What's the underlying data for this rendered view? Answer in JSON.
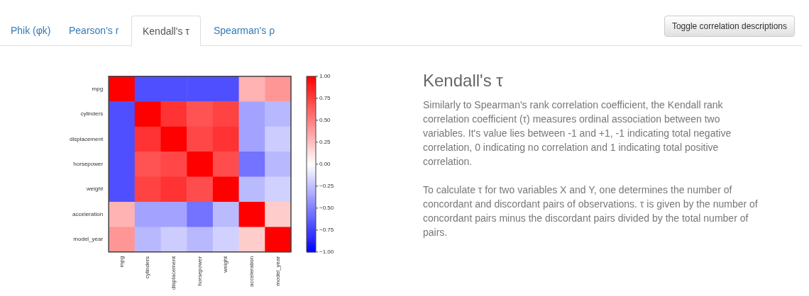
{
  "chart_data": [
    {
      "type": "other",
      "annotations": [
        "Phik (φk)",
        "Pearson's r",
        "Kendall's τ",
        "Spearman's ρ",
        "Toggle correlation descriptions"
      ]
    },
    {
      "type": "heatmap",
      "categories": [
        "mpg",
        "cylinders",
        "displacement",
        "horsepower",
        "weight",
        "acceleration",
        "model_year"
      ],
      "y_categories": [
        "mpg",
        "cylinders",
        "displacement",
        "horsepower",
        "weight",
        "acceleration",
        "model_year"
      ],
      "cells": [
        [
          1,
          -0.69,
          -0.69,
          -0.69,
          -0.69,
          0.3,
          0.41
        ],
        [
          -0.69,
          1,
          0.8,
          0.68,
          0.74,
          -0.36,
          -0.28
        ],
        [
          -0.69,
          0.8,
          1,
          0.72,
          0.8,
          -0.36,
          -0.2
        ],
        [
          -0.69,
          0.68,
          0.72,
          1,
          0.7,
          -0.55,
          -0.28
        ],
        [
          -0.69,
          0.74,
          0.8,
          0.7,
          1,
          -0.27,
          -0.18
        ],
        [
          0.3,
          -0.36,
          -0.36,
          -0.55,
          -0.27,
          1,
          0.2
        ],
        [
          0.41,
          -0.28,
          -0.2,
          -0.28,
          -0.18,
          0.2,
          1
        ]
      ],
      "clim": [
        -1,
        1
      ],
      "cticks": [
        {
          "value": -1,
          "label": "−1.00"
        },
        {
          "value": -0.75,
          "label": "−0.75"
        },
        {
          "value": -0.5,
          "label": "−0.50"
        },
        {
          "value": -0.25,
          "label": "−0.25"
        },
        {
          "value": 0,
          "label": "0.00"
        },
        {
          "value": 0.25,
          "label": "0.25"
        },
        {
          "value": 0.5,
          "label": "0.50"
        },
        {
          "value": 0.75,
          "label": "0.75"
        },
        {
          "value": 1,
          "label": "1.00"
        }
      ]
    },
    {
      "type": "other",
      "title": "Kendall's τ",
      "annotations": [
        "Similarly to Spearman's rank correlation coefficient, the Kendall rank correlation coefficient (τ) measures ordinal association between two variables. It's value lies between -1 and +1, -1 indicating total negative correlation, 0 indicating no correlation and 1 indicating total positive correlation.",
        "To calculate τ for two variables X and Y, one determines the number of concordant and discordant pairs of observations. τ is given by the number of concordant pairs minus the discordant pairs divided by the total number of pairs."
      ]
    }
  ]
}
